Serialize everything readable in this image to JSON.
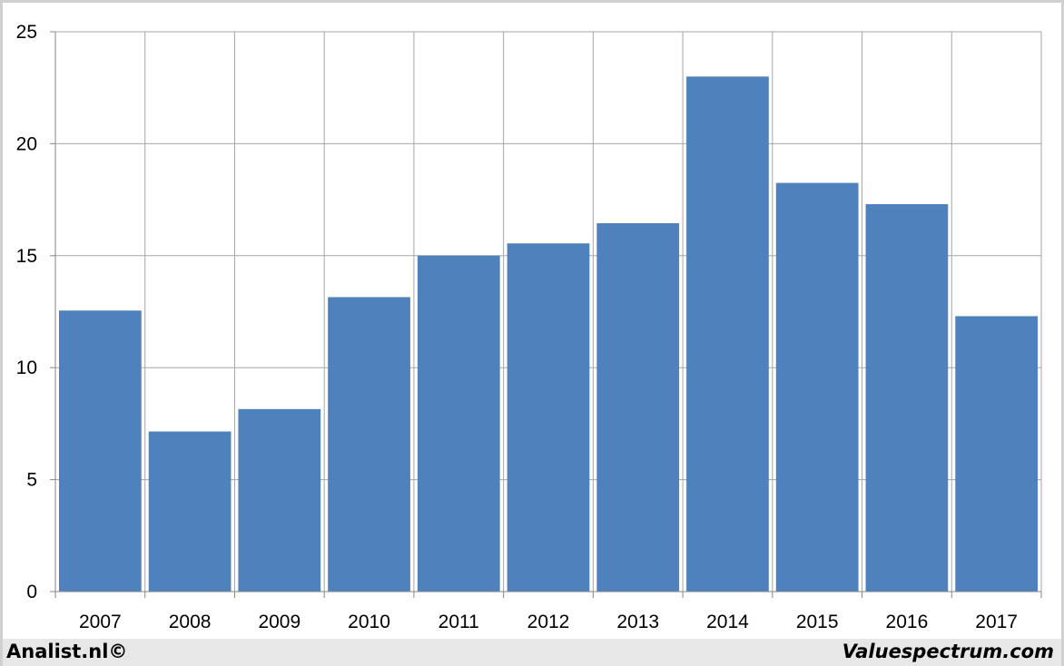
{
  "chart_data": {
    "type": "bar",
    "title": "",
    "xlabel": "",
    "ylabel": "",
    "categories": [
      "2007",
      "2008",
      "2009",
      "2010",
      "2011",
      "2012",
      "2013",
      "2014",
      "2015",
      "2016",
      "2017"
    ],
    "values": [
      12.55,
      7.15,
      8.15,
      13.15,
      15.0,
      15.55,
      16.45,
      23.0,
      18.25,
      17.3,
      12.3
    ],
    "ylim": [
      0,
      25
    ],
    "yticks": [
      "0",
      "5",
      "10",
      "15",
      "20",
      "25"
    ],
    "grid": true,
    "legend": "none",
    "bar_color": "#4f81bd",
    "grid_color": "#a6a6a6"
  },
  "footer": {
    "left_text": "Analist.nl©",
    "right_text": "Valuespectrum.com"
  }
}
